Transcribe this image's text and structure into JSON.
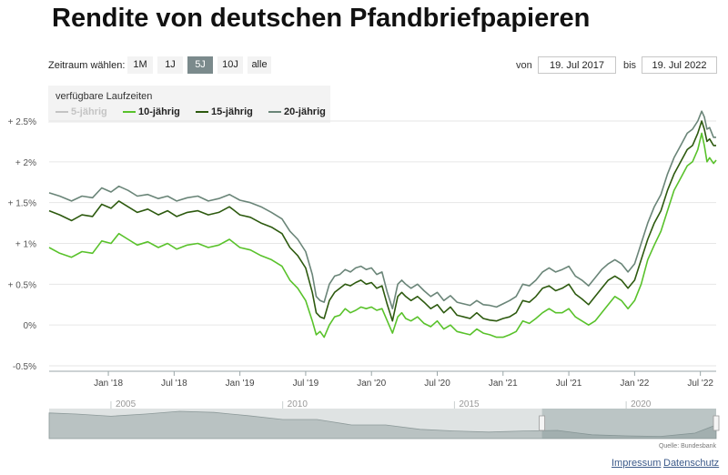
{
  "page": {
    "title": "Rendite von deutschen Pfandbriefpapieren"
  },
  "controls": {
    "range_label": "Zeitraum wählen:",
    "range_buttons": [
      "1M",
      "1J",
      "5J",
      "10J",
      "alle"
    ],
    "active_range": "5J",
    "from_label": "von",
    "from_date": "19. Jul 2017",
    "to_label": "bis",
    "to_date": "19. Jul 2022"
  },
  "legend": {
    "title": "verfügbare Laufzeiten",
    "items": [
      {
        "label": "5-jährig",
        "color": "#c4c4c4",
        "enabled": false
      },
      {
        "label": "10-jährig",
        "color": "#59c22b",
        "enabled": true
      },
      {
        "label": "15-jährig",
        "color": "#2d5a0f",
        "enabled": true
      },
      {
        "label": "20-jährig",
        "color": "#6a8578",
        "enabled": true
      }
    ]
  },
  "chart_data": {
    "type": "line",
    "title": "Rendite von deutschen Pfandbriefpapieren",
    "xlabel": "",
    "ylabel": "",
    "ylim": [
      -0.5,
      2.5
    ],
    "xlim": [
      2017.55,
      2022.62
    ],
    "y_ticks": [
      {
        "value": 2.5,
        "label": "+ 2.5%"
      },
      {
        "value": 2.0,
        "label": "+ 2%"
      },
      {
        "value": 1.5,
        "label": "+ 1.5%"
      },
      {
        "value": 1.0,
        "label": "+ 1%"
      },
      {
        "value": 0.5,
        "label": "+ 0.5%"
      },
      {
        "value": 0.0,
        "label": "0%"
      },
      {
        "value": -0.5,
        "label": "-0.5%"
      }
    ],
    "x_ticks": [
      {
        "value": 2018.0,
        "label": "Jan '18"
      },
      {
        "value": 2018.5,
        "label": "Jul '18"
      },
      {
        "value": 2019.0,
        "label": "Jan '19"
      },
      {
        "value": 2019.5,
        "label": "Jul '19"
      },
      {
        "value": 2020.0,
        "label": "Jan '20"
      },
      {
        "value": 2020.5,
        "label": "Jul '20"
      },
      {
        "value": 2021.0,
        "label": "Jan '21"
      },
      {
        "value": 2021.5,
        "label": "Jul '21"
      },
      {
        "value": 2022.0,
        "label": "Jan '22"
      },
      {
        "value": 2022.5,
        "label": "Jul '22"
      }
    ],
    "series": [
      {
        "name": "10-jährig",
        "color": "#59c22b",
        "x": [
          2017.55,
          2017.63,
          2017.72,
          2017.8,
          2017.88,
          2017.95,
          2018.02,
          2018.08,
          2018.15,
          2018.22,
          2018.3,
          2018.38,
          2018.45,
          2018.52,
          2018.6,
          2018.68,
          2018.76,
          2018.84,
          2018.92,
          2019.0,
          2019.08,
          2019.16,
          2019.24,
          2019.32,
          2019.38,
          2019.44,
          2019.5,
          2019.55,
          2019.58,
          2019.61,
          2019.64,
          2019.68,
          2019.72,
          2019.76,
          2019.8,
          2019.84,
          2019.88,
          2019.92,
          2019.96,
          2020.0,
          2020.04,
          2020.08,
          2020.12,
          2020.16,
          2020.2,
          2020.23,
          2020.26,
          2020.3,
          2020.35,
          2020.4,
          2020.45,
          2020.5,
          2020.55,
          2020.6,
          2020.65,
          2020.7,
          2020.75,
          2020.8,
          2020.85,
          2020.9,
          2020.95,
          2021.0,
          2021.05,
          2021.1,
          2021.15,
          2021.2,
          2021.25,
          2021.3,
          2021.35,
          2021.4,
          2021.45,
          2021.5,
          2021.55,
          2021.6,
          2021.65,
          2021.7,
          2021.75,
          2021.8,
          2021.85,
          2021.9,
          2021.95,
          2022.0,
          2022.05,
          2022.1,
          2022.15,
          2022.2,
          2022.25,
          2022.3,
          2022.35,
          2022.4,
          2022.44,
          2022.48,
          2022.51,
          2022.53,
          2022.55,
          2022.57,
          2022.6,
          2022.62
        ],
        "values": [
          0.95,
          0.88,
          0.83,
          0.9,
          0.88,
          1.03,
          1.0,
          1.12,
          1.05,
          0.98,
          1.02,
          0.95,
          1.0,
          0.93,
          0.98,
          1.0,
          0.95,
          0.98,
          1.05,
          0.95,
          0.92,
          0.85,
          0.8,
          0.72,
          0.55,
          0.45,
          0.3,
          0.05,
          -0.12,
          -0.08,
          -0.15,
          0.0,
          0.1,
          0.12,
          0.2,
          0.15,
          0.18,
          0.22,
          0.2,
          0.22,
          0.18,
          0.2,
          0.05,
          -0.1,
          0.1,
          0.15,
          0.08,
          0.05,
          0.1,
          0.02,
          -0.02,
          0.05,
          -0.05,
          0.0,
          -0.08,
          -0.1,
          -0.12,
          -0.05,
          -0.1,
          -0.12,
          -0.15,
          -0.15,
          -0.12,
          -0.08,
          0.05,
          0.02,
          0.08,
          0.15,
          0.2,
          0.15,
          0.15,
          0.2,
          0.1,
          0.05,
          0.0,
          0.05,
          0.15,
          0.25,
          0.35,
          0.3,
          0.2,
          0.3,
          0.5,
          0.8,
          0.98,
          1.15,
          1.4,
          1.65,
          1.8,
          1.95,
          2.0,
          2.15,
          2.35,
          2.2,
          2.0,
          2.05,
          1.98,
          2.02
        ]
      },
      {
        "name": "15-jährig",
        "color": "#2d5a0f",
        "x": [
          2017.55,
          2017.63,
          2017.72,
          2017.8,
          2017.88,
          2017.95,
          2018.02,
          2018.08,
          2018.15,
          2018.22,
          2018.3,
          2018.38,
          2018.45,
          2018.52,
          2018.6,
          2018.68,
          2018.76,
          2018.84,
          2018.92,
          2019.0,
          2019.08,
          2019.16,
          2019.24,
          2019.32,
          2019.38,
          2019.44,
          2019.5,
          2019.55,
          2019.58,
          2019.61,
          2019.64,
          2019.68,
          2019.72,
          2019.76,
          2019.8,
          2019.84,
          2019.88,
          2019.92,
          2019.96,
          2020.0,
          2020.04,
          2020.08,
          2020.12,
          2020.16,
          2020.2,
          2020.23,
          2020.26,
          2020.3,
          2020.35,
          2020.4,
          2020.45,
          2020.5,
          2020.55,
          2020.6,
          2020.65,
          2020.7,
          2020.75,
          2020.8,
          2020.85,
          2020.9,
          2020.95,
          2021.0,
          2021.05,
          2021.1,
          2021.15,
          2021.2,
          2021.25,
          2021.3,
          2021.35,
          2021.4,
          2021.45,
          2021.5,
          2021.55,
          2021.6,
          2021.65,
          2021.7,
          2021.75,
          2021.8,
          2021.85,
          2021.9,
          2021.95,
          2022.0,
          2022.05,
          2022.1,
          2022.15,
          2022.2,
          2022.25,
          2022.3,
          2022.35,
          2022.4,
          2022.44,
          2022.48,
          2022.51,
          2022.53,
          2022.55,
          2022.57,
          2022.6,
          2022.62
        ],
        "values": [
          1.4,
          1.35,
          1.28,
          1.35,
          1.33,
          1.48,
          1.43,
          1.52,
          1.45,
          1.38,
          1.42,
          1.35,
          1.4,
          1.33,
          1.38,
          1.4,
          1.35,
          1.38,
          1.45,
          1.35,
          1.32,
          1.25,
          1.2,
          1.12,
          0.95,
          0.85,
          0.7,
          0.4,
          0.15,
          0.1,
          0.08,
          0.3,
          0.4,
          0.45,
          0.5,
          0.48,
          0.52,
          0.55,
          0.5,
          0.52,
          0.45,
          0.48,
          0.25,
          0.05,
          0.35,
          0.4,
          0.35,
          0.3,
          0.35,
          0.28,
          0.2,
          0.25,
          0.15,
          0.22,
          0.12,
          0.1,
          0.08,
          0.15,
          0.08,
          0.06,
          0.05,
          0.08,
          0.1,
          0.15,
          0.3,
          0.28,
          0.35,
          0.45,
          0.48,
          0.42,
          0.45,
          0.5,
          0.38,
          0.32,
          0.25,
          0.35,
          0.45,
          0.55,
          0.6,
          0.55,
          0.45,
          0.55,
          0.8,
          1.05,
          1.25,
          1.4,
          1.65,
          1.85,
          2.0,
          2.15,
          2.2,
          2.35,
          2.5,
          2.4,
          2.25,
          2.28,
          2.2,
          2.2
        ]
      },
      {
        "name": "20-jährig",
        "color": "#6a8578",
        "x": [
          2017.55,
          2017.63,
          2017.72,
          2017.8,
          2017.88,
          2017.95,
          2018.02,
          2018.08,
          2018.15,
          2018.22,
          2018.3,
          2018.38,
          2018.45,
          2018.52,
          2018.6,
          2018.68,
          2018.76,
          2018.84,
          2018.92,
          2019.0,
          2019.08,
          2019.16,
          2019.24,
          2019.32,
          2019.38,
          2019.44,
          2019.5,
          2019.55,
          2019.58,
          2019.61,
          2019.64,
          2019.68,
          2019.72,
          2019.76,
          2019.8,
          2019.84,
          2019.88,
          2019.92,
          2019.96,
          2020.0,
          2020.04,
          2020.08,
          2020.12,
          2020.16,
          2020.2,
          2020.23,
          2020.26,
          2020.3,
          2020.35,
          2020.4,
          2020.45,
          2020.5,
          2020.55,
          2020.6,
          2020.65,
          2020.7,
          2020.75,
          2020.8,
          2020.85,
          2020.9,
          2020.95,
          2021.0,
          2021.05,
          2021.1,
          2021.15,
          2021.2,
          2021.25,
          2021.3,
          2021.35,
          2021.4,
          2021.45,
          2021.5,
          2021.55,
          2021.6,
          2021.65,
          2021.7,
          2021.75,
          2021.8,
          2021.85,
          2021.9,
          2021.95,
          2022.0,
          2022.05,
          2022.1,
          2022.15,
          2022.2,
          2022.25,
          2022.3,
          2022.35,
          2022.4,
          2022.44,
          2022.48,
          2022.51,
          2022.53,
          2022.55,
          2022.57,
          2022.6,
          2022.62
        ],
        "values": [
          1.62,
          1.58,
          1.52,
          1.58,
          1.56,
          1.68,
          1.63,
          1.7,
          1.65,
          1.58,
          1.6,
          1.55,
          1.58,
          1.52,
          1.56,
          1.58,
          1.52,
          1.55,
          1.6,
          1.53,
          1.5,
          1.45,
          1.38,
          1.3,
          1.15,
          1.05,
          0.9,
          0.62,
          0.35,
          0.3,
          0.28,
          0.5,
          0.6,
          0.62,
          0.68,
          0.65,
          0.7,
          0.72,
          0.68,
          0.7,
          0.62,
          0.65,
          0.4,
          0.2,
          0.5,
          0.55,
          0.5,
          0.45,
          0.5,
          0.42,
          0.35,
          0.4,
          0.3,
          0.36,
          0.28,
          0.26,
          0.24,
          0.3,
          0.25,
          0.24,
          0.22,
          0.26,
          0.3,
          0.35,
          0.5,
          0.48,
          0.55,
          0.65,
          0.7,
          0.65,
          0.68,
          0.72,
          0.6,
          0.55,
          0.48,
          0.58,
          0.68,
          0.75,
          0.8,
          0.75,
          0.65,
          0.75,
          1.0,
          1.25,
          1.45,
          1.6,
          1.85,
          2.05,
          2.2,
          2.35,
          2.4,
          2.5,
          2.62,
          2.55,
          2.4,
          2.42,
          2.3,
          2.3
        ]
      }
    ],
    "navigator": {
      "year_labels": [
        "2005",
        "2010",
        "2015",
        "2020"
      ],
      "year_values": [
        2005,
        2010,
        2015,
        2020
      ],
      "xlim": [
        2003.2,
        2022.62
      ],
      "selected_range": [
        2017.55,
        2022.62
      ],
      "series_10y": {
        "x": [
          2003.2,
          2004,
          2005,
          2006,
          2007,
          2008,
          2009,
          2010,
          2011,
          2012,
          2013,
          2014,
          2015,
          2016,
          2017,
          2018,
          2019,
          2020,
          2021,
          2022,
          2022.62
        ],
        "values": [
          4.2,
          4.0,
          3.6,
          4.0,
          4.5,
          4.3,
          3.7,
          3.0,
          3.0,
          2.0,
          2.0,
          1.2,
          0.9,
          0.7,
          0.9,
          1.0,
          0.2,
          0.0,
          -0.1,
          0.5,
          2.0
        ]
      }
    },
    "source": "Quelle: Bundesbank"
  },
  "footer": {
    "impressum": "Impressum",
    "datenschutz": "Datenschutz"
  }
}
